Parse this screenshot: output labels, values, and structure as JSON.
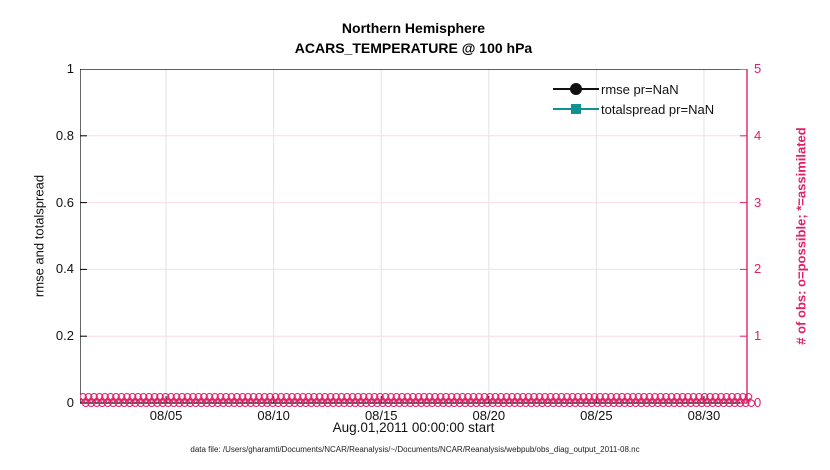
{
  "figure": {
    "title_line1": "Northern Hemisphere",
    "title_line2": "ACARS_TEMPERATURE @ 100 hPa",
    "footer": "data file: /Users/gharamti/Documents/NCAR/Reanalysis/~/Documents/NCAR/Reanalysis/webpub/obs_diag_output_2011-08.nc"
  },
  "colors": {
    "obs_pink": "#e0216a",
    "pink_grid": "#fbdcea",
    "gray_grid": "#e2e2e2",
    "axis_black": "#000000",
    "rmse_black": "#111111",
    "totalspread_teal": "#0f9292"
  },
  "legend": {
    "items": [
      {
        "label": "rmse pr=NaN",
        "marker": "filled-circle",
        "color": "#111111"
      },
      {
        "label": "totalspread pr=NaN",
        "marker": "filled-square",
        "color": "#0f9292"
      }
    ]
  },
  "chart_data": {
    "type": "line",
    "title": "Northern Hemisphere",
    "subtitle": "ACARS_TEMPERATURE @ 100 hPa",
    "xlabel": "Aug.01,2011 00:00:00 start",
    "ylabel_left": "rmse and totalspread",
    "ylabel_right": "# of obs: o=possible; *=assimilated",
    "x_range_days": [
      0,
      31
    ],
    "x_tick_labels": [
      "08/05",
      "08/10",
      "08/15",
      "08/20",
      "08/25",
      "08/30"
    ],
    "x_tick_days": [
      4,
      9,
      14,
      19,
      24,
      29
    ],
    "ylim_left": [
      0,
      1
    ],
    "y_tick_labels_left": [
      "0",
      "0.2",
      "0.4",
      "0.6",
      "0.8",
      "1"
    ],
    "y_tick_values_left": [
      0,
      0.2,
      0.4,
      0.6,
      0.8,
      1
    ],
    "ylim_right": [
      0,
      5
    ],
    "y_tick_labels_right": [
      "0",
      "1",
      "2",
      "3",
      "4",
      "5"
    ],
    "y_tick_values_right": [
      0,
      1,
      2,
      3,
      4,
      5
    ],
    "grid": true,
    "legend_position": "northeast",
    "series": [
      {
        "name": "rmse pr=NaN",
        "style": "black line, filled circle markers",
        "values": "NaN - no curve plotted"
      },
      {
        "name": "totalspread pr=NaN",
        "style": "teal line, filled square markers",
        "values": "NaN - no curve plotted"
      },
      {
        "name": "# of obs possible (o markers, right axis)",
        "value_constant": 0,
        "note": "dense overlapping pink o markers at y=0 across entire x range"
      },
      {
        "name": "# of obs assimilated (* markers, right axis)",
        "value_constant": 0,
        "note": "dense overlapping pink * markers at y=0 across entire x range"
      }
    ]
  }
}
